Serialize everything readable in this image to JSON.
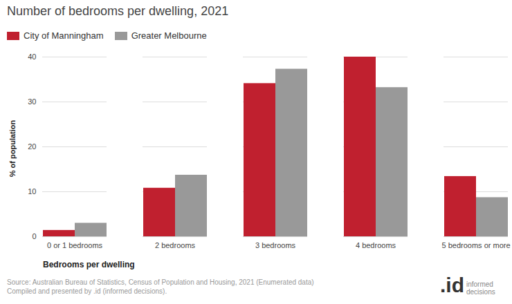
{
  "chart_data": {
    "type": "bar",
    "title": "Number of bedrooms per dwelling, 2021",
    "x_label": "Bedrooms per dwelling",
    "y_label": "% of population",
    "categories": [
      "0 or 1 bedrooms",
      "2 bedrooms",
      "3 bedrooms",
      "4 bedrooms",
      "5 bedrooms or more"
    ],
    "series": [
      {
        "name": "City of Manningham",
        "color": "#c0202f",
        "values": [
          1.4,
          10.8,
          34.1,
          40.0,
          13.4
        ]
      },
      {
        "name": "Greater Melbourne",
        "color": "#999999",
        "values": [
          3.0,
          13.7,
          37.3,
          33.2,
          8.7
        ]
      }
    ],
    "ylim": [
      0,
      40
    ],
    "yticks": [
      0,
      10,
      20,
      30,
      40
    ],
    "grid": true,
    "legend": "top-left",
    "source": [
      "Source: Australian Bureau of Statistics, Census of Population and Housing, 2021 (Enumerated data)",
      "Compiled and presented by .id (informed decisions)."
    ],
    "logo": ".id",
    "logo_text": "informed decisions"
  }
}
